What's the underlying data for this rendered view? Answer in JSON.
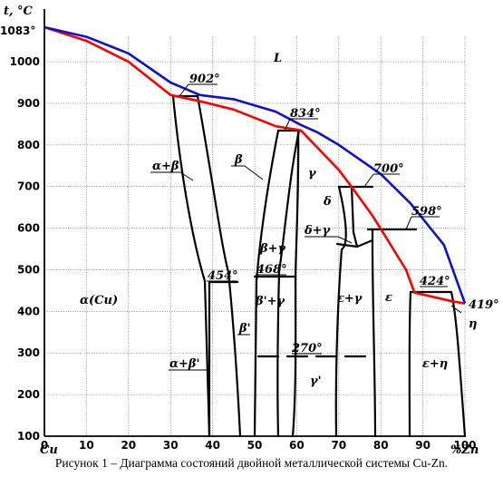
{
  "axes": {
    "y_label": "t, °C",
    "y_top_label": "1083°",
    "x_start_label": "Cu",
    "x_end_label": "%Zn",
    "y_ticks": [
      "100",
      "200",
      "300",
      "400",
      "500",
      "600",
      "700",
      "800",
      "900",
      "1000"
    ],
    "x_ticks": [
      "0",
      "10",
      "20",
      "30",
      "40",
      "50",
      "60",
      "70",
      "80",
      "90",
      "100"
    ],
    "ylim": [
      100,
      1083
    ],
    "xlim": [
      0,
      100
    ]
  },
  "phase_labels": {
    "L": "L",
    "beta": "β",
    "gamma": "γ",
    "delta": "δ",
    "epsilon": "ε",
    "eta": "η",
    "alpha_cu": "α(Cu)",
    "alpha_beta": "α+β",
    "beta_gamma": "β+γ",
    "delta_gamma": "δ+γ",
    "beta_prime": "β'",
    "beta_prime_gamma": "β'+γ",
    "epsilon_gamma": "ε+γ",
    "alpha_beta_prime": "α+β'",
    "gamma_prime": "γ'",
    "epsilon_eta": "ε+η"
  },
  "temperature_labels": {
    "t902": "902°",
    "t834": "834°",
    "t700": "700°",
    "t598": "598°",
    "t424": "424°",
    "t419": "419°",
    "t454": "454°",
    "t468": "468°",
    "t270": "270°"
  },
  "caption": "Рисунок 1 – Диаграмма состояний двойной металлической системы Cu-Zn.",
  "colors": {
    "liquidus": "#1010d0",
    "solidus": "#ff0000",
    "phase_boundary": "#000000"
  },
  "chart_data": {
    "type": "phase_diagram",
    "x_unit": "% Zn",
    "y_unit": "°C",
    "liquidus": [
      [
        0,
        1083
      ],
      [
        10,
        1060
      ],
      [
        20,
        1020
      ],
      [
        30,
        950
      ],
      [
        37,
        920
      ],
      [
        45,
        910
      ],
      [
        55,
        880
      ],
      [
        61,
        848
      ],
      [
        65,
        830
      ],
      [
        70,
        800
      ],
      [
        80,
        730
      ],
      [
        87,
        660
      ],
      [
        95,
        560
      ],
      [
        100,
        419
      ]
    ],
    "solidus": [
      [
        0,
        1083
      ],
      [
        10,
        1050
      ],
      [
        20,
        1000
      ],
      [
        30,
        920
      ],
      [
        37,
        905
      ],
      [
        45,
        885
      ],
      [
        55,
        845
      ],
      [
        61,
        835
      ],
      [
        70,
        740
      ],
      [
        73,
        700
      ],
      [
        78,
        630
      ],
      [
        80,
        598
      ],
      [
        86,
        500
      ],
      [
        88,
        445
      ],
      [
        97,
        424
      ],
      [
        100,
        419
      ]
    ],
    "invariant_lines": [
      {
        "temp": 902,
        "x": [
          31,
          37
        ]
      },
      {
        "temp": 834,
        "x": [
          56,
          61
        ]
      },
      {
        "temp": 700,
        "x": [
          73,
          80
        ]
      },
      {
        "temp": 598,
        "x": [
          80,
          89
        ]
      },
      {
        "temp": 424,
        "x": [
          88,
          97
        ]
      },
      {
        "temp": 454,
        "x": [
          39,
          46
        ]
      },
      {
        "temp": 468,
        "x": [
          50,
          59
        ]
      },
      {
        "temp": 270,
        "x": [
          51,
          82
        ]
      }
    ]
  }
}
